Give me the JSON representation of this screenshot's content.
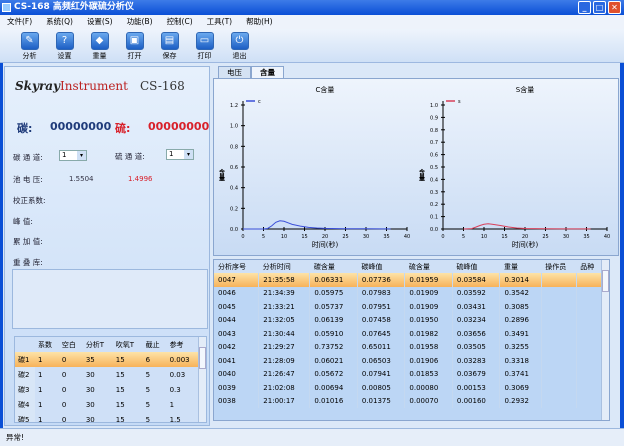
{
  "window": {
    "title": "CS-168  高频红外碳硫分析仪",
    "minimize": "_",
    "maximize": "□",
    "close": "✕"
  },
  "menu": [
    "文件(F)",
    "系统(Q)",
    "设置(S)",
    "功能(B)",
    "控制(C)",
    "工具(T)",
    "帮助(H)"
  ],
  "toolbar": [
    {
      "label": "分析",
      "icon": "analyze-icon",
      "glyph": "✎"
    },
    {
      "label": "设置",
      "icon": "settings-icon",
      "glyph": "?"
    },
    {
      "label": "重量",
      "icon": "weight-icon",
      "glyph": "◆"
    },
    {
      "label": "打开",
      "icon": "open-icon",
      "glyph": "▣"
    },
    {
      "label": "保存",
      "icon": "save-icon",
      "glyph": "▤"
    },
    {
      "label": "打印",
      "icon": "print-icon",
      "glyph": "▭"
    },
    {
      "label": "退出",
      "icon": "power-icon",
      "glyph": "⏻"
    }
  ],
  "logo": {
    "brand": "Skyray",
    "instrument": "Instrument",
    "model": "CS-168"
  },
  "readout": {
    "carbon_label": "碳:",
    "carbon_value": "00000000",
    "sulfur_label": "硫:",
    "sulfur_value": "00000000",
    "carbon_color": "#1f3b7a",
    "sulfur_color": "#d8202a"
  },
  "fields": {
    "c_channel_label": "碳 通 道:",
    "c_channel": "1",
    "s_channel_label": "硫 通 道:",
    "s_channel": "1",
    "voltage_label": "池 电 压:",
    "c_voltage": "1.5504",
    "s_voltage": "1.4996",
    "calib_label": "校正系数:",
    "peak_label": "峰    值:",
    "accum_label": "累 加 值:",
    "overlap_label": "重 叠 库:"
  },
  "coef_table": {
    "headers": [
      "",
      "系数",
      "空白",
      "分析T",
      "吹氧T",
      "截止",
      "参考"
    ],
    "rows": [
      [
        "碳1",
        "1",
        "0",
        "35",
        "15",
        "6",
        "0.003"
      ],
      [
        "碳2",
        "1",
        "0",
        "30",
        "15",
        "5",
        "0.03"
      ],
      [
        "碳3",
        "1",
        "0",
        "30",
        "15",
        "5",
        "0.3"
      ],
      [
        "碳4",
        "1",
        "0",
        "30",
        "15",
        "5",
        "1"
      ],
      [
        "碳5",
        "1",
        "0",
        "30",
        "15",
        "5",
        "1.5"
      ]
    ]
  },
  "tabs": [
    {
      "label": "电压"
    },
    {
      "label": "含量",
      "active": true
    }
  ],
  "chart_data": [
    {
      "type": "line",
      "title": "C含量",
      "xlabel": "时间(秒)",
      "ylabel": "含量",
      "xlim": [
        0,
        40
      ],
      "ylim": [
        0,
        1.2
      ],
      "xticks": [
        0,
        5,
        10,
        15,
        20,
        25,
        30,
        35,
        40
      ],
      "yticks": [
        0.0,
        0.2,
        0.4,
        0.6,
        0.8,
        1.0,
        1.2
      ],
      "legend": "top-left",
      "series": [
        {
          "name": "c",
          "color": "#3b4fd8",
          "x": [
            0,
            5,
            6,
            7,
            8,
            9,
            10,
            11,
            12,
            14,
            16,
            18,
            20,
            25,
            30,
            36
          ],
          "y": [
            0,
            0,
            0.005,
            0.03,
            0.065,
            0.08,
            0.075,
            0.06,
            0.045,
            0.028,
            0.016,
            0.01,
            0.006,
            0.003,
            0.002,
            0.001
          ]
        }
      ]
    },
    {
      "type": "line",
      "title": "S含量",
      "xlabel": "时间(秒)",
      "ylabel": "含量",
      "xlim": [
        0,
        40
      ],
      "ylim": [
        0,
        1.0
      ],
      "xticks": [
        0,
        5,
        10,
        15,
        20,
        25,
        30,
        35,
        40
      ],
      "yticks": [
        0.0,
        0.1,
        0.2,
        0.3,
        0.4,
        0.5,
        0.6,
        0.7,
        0.8,
        0.9,
        1.0
      ],
      "legend": "top-left",
      "series": [
        {
          "name": "s",
          "color": "#d8405a",
          "x": [
            5,
            7,
            8,
            9,
            10,
            11,
            12,
            14,
            16,
            18,
            20,
            25,
            30,
            36
          ],
          "y": [
            0,
            0.003,
            0.015,
            0.028,
            0.038,
            0.042,
            0.038,
            0.028,
            0.016,
            0.008,
            0.004,
            0.002,
            0.001,
            0.001
          ]
        }
      ]
    }
  ],
  "results": {
    "headers": [
      "分析序号",
      "分析时间",
      "碳含量",
      "碳峰值",
      "硫含量",
      "硫峰值",
      "重量",
      "操作员",
      "品种"
    ],
    "rows": [
      [
        "0047",
        "21:35:58",
        "0.06331",
        "0.07736",
        "0.01959",
        "0.03584",
        "0.3014",
        "",
        ""
      ],
      [
        "0046",
        "21:34:39",
        "0.05975",
        "0.07983",
        "0.01909",
        "0.03592",
        "0.3542",
        "",
        ""
      ],
      [
        "0045",
        "21:33:21",
        "0.05737",
        "0.07951",
        "0.01909",
        "0.03431",
        "0.3085",
        "",
        ""
      ],
      [
        "0044",
        "21:32:05",
        "0.06139",
        "0.07458",
        "0.01950",
        "0.03234",
        "0.2896",
        "",
        ""
      ],
      [
        "0043",
        "21:30:44",
        "0.05910",
        "0.07645",
        "0.01982",
        "0.03656",
        "0.3491",
        "",
        ""
      ],
      [
        "0042",
        "21:29:27",
        "0.73752",
        "0.65011",
        "0.01958",
        "0.03505",
        "0.3255",
        "",
        ""
      ],
      [
        "0041",
        "21:28:09",
        "0.06021",
        "0.06503",
        "0.01906",
        "0.03283",
        "0.3318",
        "",
        ""
      ],
      [
        "0040",
        "21:26:47",
        "0.05672",
        "0.07941",
        "0.01853",
        "0.03679",
        "0.3741",
        "",
        ""
      ],
      [
        "0039",
        "21:02:08",
        "0.00694",
        "0.00805",
        "0.00080",
        "0.00153",
        "0.3069",
        "",
        ""
      ],
      [
        "0038",
        "21:00:17",
        "0.01016",
        "0.01375",
        "0.00070",
        "0.00160",
        "0.2932",
        "",
        ""
      ]
    ]
  },
  "status": "异常!"
}
